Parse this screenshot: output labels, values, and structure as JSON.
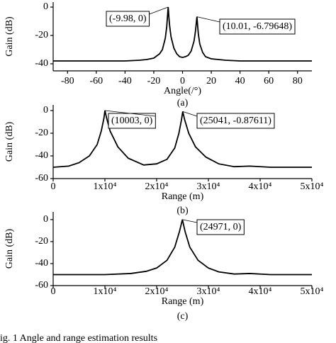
{
  "chart_data": [
    {
      "type": "line",
      "ylabel": "Gain (dB)",
      "xlabel": "Angle(/°)",
      "sublabel": "(a)",
      "color": "#000000",
      "x": [
        -90,
        -60,
        -40,
        -30,
        -25,
        -20,
        -16,
        -14,
        -12,
        -11,
        -10.5,
        -9.98,
        -9.5,
        -9,
        -8,
        -6,
        -4,
        -2,
        0,
        2,
        4,
        6,
        8,
        9,
        9.5,
        10.01,
        10.5,
        11,
        12,
        14,
        16,
        20,
        30,
        40,
        60,
        90
      ],
      "values": [
        -38,
        -38,
        -38,
        -37.5,
        -37,
        -36,
        -33,
        -30,
        -22,
        -14,
        -7,
        0,
        -7,
        -13,
        -21,
        -29,
        -33,
        -35,
        -35.5,
        -35,
        -34,
        -31,
        -24,
        -17,
        -12,
        -6.79648,
        -13,
        -19,
        -26,
        -32,
        -35,
        -36.5,
        -37.5,
        -38,
        -38,
        -38
      ],
      "xlim": [
        -90,
        90
      ],
      "ylim": [
        -45,
        3.5
      ],
      "xticks": [
        -80,
        -60,
        -40,
        -20,
        0,
        20,
        40,
        60,
        80
      ],
      "yticks": [
        0,
        -20,
        -40
      ],
      "annotations": [
        "(-9.98, 0)",
        "(10.01, -6.79648)"
      ]
    },
    {
      "type": "line",
      "ylabel": "Gain (dB)",
      "xlabel": "Range (m)",
      "sublabel": "(b)",
      "color": "#000000",
      "x": [
        0,
        3000,
        5000,
        7000,
        8500,
        9300,
        9800,
        10003,
        10300,
        11000,
        12500,
        14500,
        17500,
        20000,
        22000,
        23500,
        24300,
        24800,
        25041,
        25400,
        26200,
        27500,
        29500,
        32000,
        35000,
        38000,
        42000,
        50000
      ],
      "values": [
        -50,
        -49,
        -46,
        -40,
        -30,
        -18,
        -7,
        0,
        -6,
        -18,
        -32,
        -42,
        -48,
        -47,
        -43,
        -33,
        -20,
        -8,
        -0.87611,
        -8,
        -20,
        -32,
        -41,
        -47,
        -49.5,
        -49,
        -50,
        -50
      ],
      "xlim": [
        0,
        50000
      ],
      "ylim": [
        -60,
        5
      ],
      "xticks": [
        0,
        {
          "value": 10000,
          "label": "1x10⁴"
        },
        {
          "value": 20000,
          "label": "2x10⁴"
        },
        {
          "value": 30000,
          "label": "3x10⁴"
        },
        {
          "value": 40000,
          "label": "4x10⁴"
        },
        {
          "value": 50000,
          "label": "5x10⁴"
        }
      ],
      "yticks": [
        0,
        -20,
        -40,
        -60
      ],
      "annotations": [
        "(10003, 0)",
        "(25041, -0.87611)"
      ]
    },
    {
      "type": "line",
      "ylabel": "Gain (dB)",
      "xlabel": "Range (m)",
      "sublabel": "(c)",
      "color": "#000000",
      "x": [
        0,
        10000,
        15000,
        18000,
        20000,
        22000,
        23500,
        24400,
        24971,
        25500,
        26400,
        28000,
        30000,
        32000,
        35000,
        38000,
        42000,
        50000
      ],
      "values": [
        -50,
        -50,
        -49,
        -47,
        -44,
        -37,
        -25,
        -11,
        0,
        -11,
        -25,
        -37,
        -44,
        -47.5,
        -49.5,
        -49,
        -50,
        -50
      ],
      "xlim": [
        0,
        50000
      ],
      "ylim": [
        -60,
        7
      ],
      "xticks": [
        0,
        {
          "value": 10000,
          "label": "1x10⁴"
        },
        {
          "value": 20000,
          "label": "2x10⁴"
        },
        {
          "value": 30000,
          "label": "3x10⁴"
        },
        {
          "value": 40000,
          "label": "4x10⁴"
        },
        {
          "value": 50000,
          "label": "5x10⁴"
        }
      ],
      "yticks": [
        0,
        -20,
        -40,
        -60
      ],
      "annotations": [
        "(24971, 0)"
      ]
    }
  ],
  "caption": "ig. 1    Angle and range estimation results"
}
